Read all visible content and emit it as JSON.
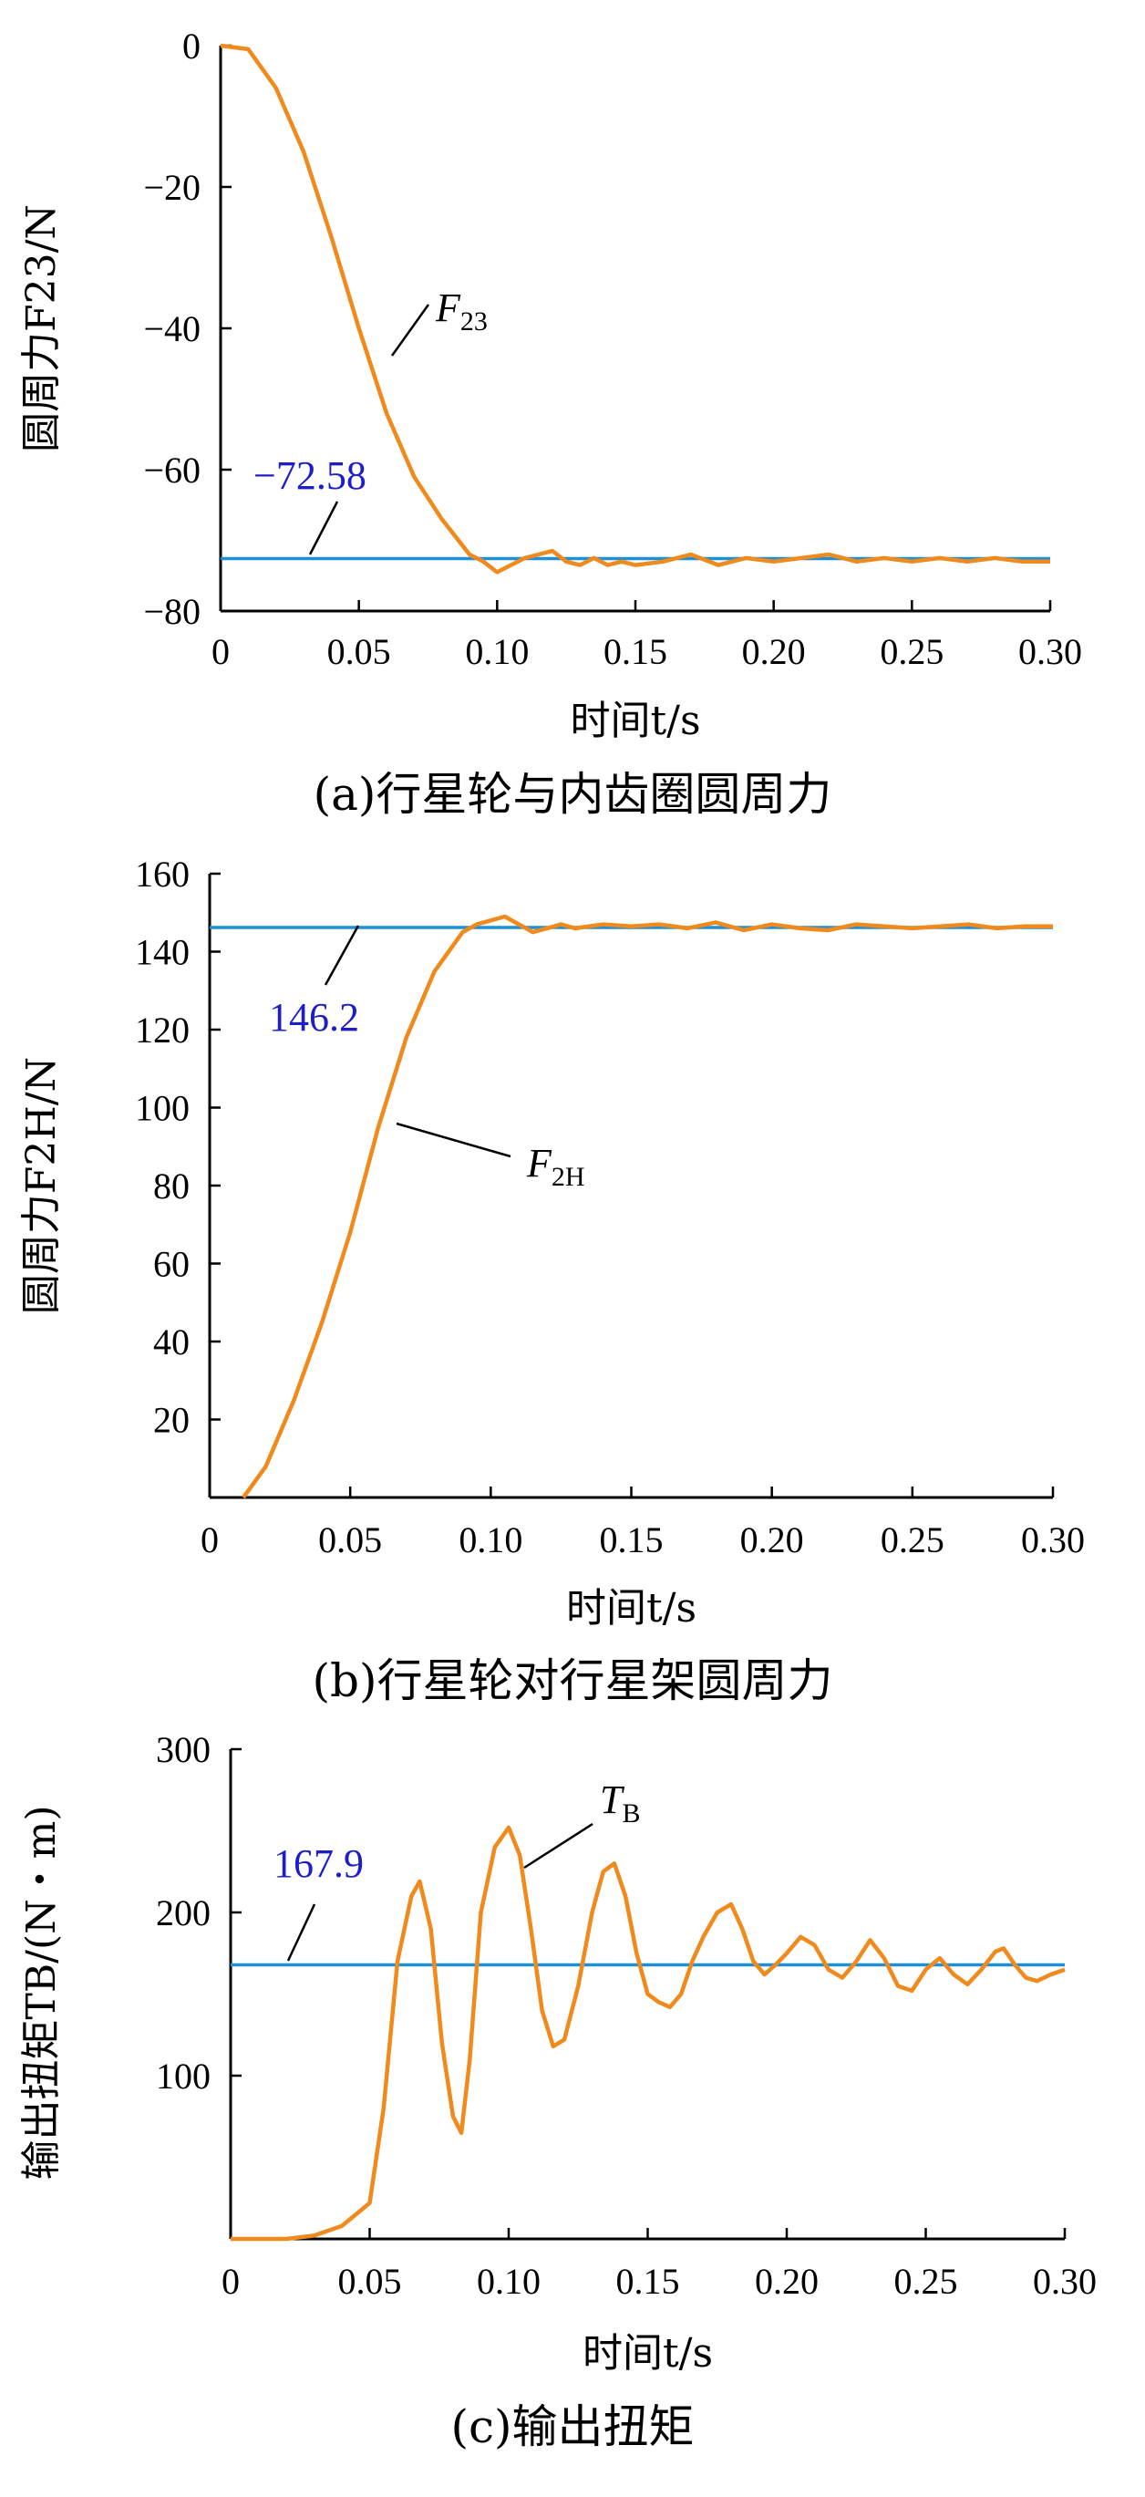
{
  "chart_data": [
    {
      "type": "line",
      "caption": "(a)行星轮与内齿圈圆周力",
      "xlabel": "时间t/s",
      "ylabel": "圆周力F23/N",
      "xlim": [
        0,
        0.3
      ],
      "ylim": [
        -80,
        0
      ],
      "x_ticks": [
        0,
        0.05,
        0.1,
        0.15,
        0.2,
        0.25,
        0.3
      ],
      "x_tick_labels": [
        "0",
        "0.05",
        "0.10",
        "0.15",
        "0.20",
        "0.25",
        "0.30"
      ],
      "y_ticks": [
        0,
        -20,
        -40,
        -60,
        -80
      ],
      "y_tick_labels": [
        "0",
        "−20",
        "−40",
        "−60",
        "−80"
      ],
      "reference": {
        "value": -72.58,
        "label": "−72.58",
        "color": "#1e90d8",
        "label_color": "#1e1ec8"
      },
      "series": [
        {
          "name": "F23",
          "name_main": "F",
          "name_sub": "23",
          "color": "#f08a1c",
          "x": [
            0,
            0.01,
            0.02,
            0.03,
            0.04,
            0.05,
            0.06,
            0.07,
            0.08,
            0.09,
            0.095,
            0.1,
            0.105,
            0.11,
            0.115,
            0.12,
            0.125,
            0.13,
            0.135,
            0.14,
            0.145,
            0.15,
            0.16,
            0.17,
            0.18,
            0.19,
            0.2,
            0.21,
            0.22,
            0.23,
            0.24,
            0.25,
            0.26,
            0.27,
            0.28,
            0.29,
            0.3
          ],
          "y": [
            0,
            -0.5,
            -6,
            -15,
            -27,
            -40,
            -52,
            -61,
            -67,
            -72,
            -73,
            -74.5,
            -73.5,
            -72.5,
            -72,
            -71.5,
            -73,
            -73.5,
            -72.5,
            -73.5,
            -73,
            -73.5,
            -73,
            -72,
            -73.5,
            -72.5,
            -73,
            -72.5,
            -72,
            -73,
            -72.5,
            -73,
            -72.5,
            -73,
            -72.5,
            -73,
            -73
          ]
        }
      ]
    },
    {
      "type": "line",
      "caption": "(b)行星轮对行星架圆周力",
      "xlabel": "时间t/s",
      "ylabel": "圆周力F2H/N",
      "xlim": [
        0,
        0.3
      ],
      "ylim": [
        0,
        160
      ],
      "x_ticks": [
        0,
        0.05,
        0.1,
        0.15,
        0.2,
        0.25,
        0.3
      ],
      "x_tick_labels": [
        "0",
        "0.05",
        "0.10",
        "0.15",
        "0.20",
        "0.25",
        "0.30"
      ],
      "y_ticks": [
        20,
        40,
        60,
        80,
        100,
        120,
        140,
        160
      ],
      "y_tick_labels": [
        "20",
        "40",
        "60",
        "80",
        "100",
        "120",
        "140",
        "160"
      ],
      "reference": {
        "value": 146.2,
        "label": "146.2",
        "color": "#1e90d8",
        "label_color": "#1e1ec8"
      },
      "series": [
        {
          "name": "F2H",
          "name_main": "F",
          "name_sub": "2H",
          "color": "#f08a1c",
          "x": [
            0.012,
            0.02,
            0.03,
            0.04,
            0.05,
            0.06,
            0.07,
            0.08,
            0.09,
            0.095,
            0.1,
            0.105,
            0.11,
            0.115,
            0.12,
            0.125,
            0.13,
            0.14,
            0.15,
            0.16,
            0.17,
            0.18,
            0.19,
            0.2,
            0.21,
            0.22,
            0.23,
            0.24,
            0.25,
            0.26,
            0.27,
            0.28,
            0.29,
            0.3
          ],
          "y": [
            0,
            8,
            25,
            45,
            68,
            95,
            118,
            135,
            145,
            147,
            148,
            149,
            147,
            145,
            146,
            147,
            146,
            147,
            146.5,
            147,
            146,
            147.5,
            145.5,
            147,
            146,
            145.5,
            147,
            146.5,
            146,
            146.5,
            147,
            146,
            146.5,
            146.5
          ]
        }
      ]
    },
    {
      "type": "line",
      "caption": "(c)输出扭矩",
      "xlabel": "时间t/s",
      "ylabel": "输出扭矩TB/(N・m)",
      "xlim": [
        0,
        0.3
      ],
      "ylim": [
        0,
        300
      ],
      "x_ticks": [
        0,
        0.05,
        0.1,
        0.15,
        0.2,
        0.25,
        0.3
      ],
      "x_tick_labels": [
        "0",
        "0.05",
        "0.10",
        "0.15",
        "0.20",
        "0.25",
        "0.30"
      ],
      "y_ticks": [
        100,
        200,
        300
      ],
      "y_tick_labels": [
        "100",
        "200",
        "300"
      ],
      "reference": {
        "value": 167.9,
        "label": "167.9",
        "color": "#1e90d8",
        "label_color": "#1e1ec8"
      },
      "series": [
        {
          "name": "TB",
          "name_main": "T",
          "name_sub": "B",
          "color": "#f08a1c",
          "x": [
            0,
            0.02,
            0.03,
            0.04,
            0.045,
            0.05,
            0.055,
            0.06,
            0.065,
            0.068,
            0.072,
            0.076,
            0.08,
            0.083,
            0.086,
            0.09,
            0.095,
            0.1,
            0.104,
            0.108,
            0.112,
            0.116,
            0.12,
            0.125,
            0.13,
            0.134,
            0.138,
            0.142,
            0.146,
            0.15,
            0.154,
            0.158,
            0.162,
            0.166,
            0.17,
            0.175,
            0.18,
            0.184,
            0.188,
            0.192,
            0.196,
            0.2,
            0.205,
            0.21,
            0.215,
            0.22,
            0.225,
            0.23,
            0.235,
            0.24,
            0.245,
            0.25,
            0.255,
            0.26,
            0.265,
            0.27,
            0.275,
            0.278,
            0.282,
            0.286,
            0.29,
            0.295,
            0.3
          ],
          "y": [
            0,
            0,
            2,
            8,
            15,
            22,
            80,
            170,
            210,
            219,
            190,
            120,
            75,
            65,
            110,
            200,
            240,
            252,
            235,
            190,
            140,
            118,
            122,
            155,
            200,
            225,
            230,
            210,
            175,
            150,
            145,
            142,
            150,
            170,
            185,
            200,
            205,
            190,
            170,
            162,
            168,
            175,
            185,
            180,
            165,
            160,
            170,
            183,
            172,
            155,
            152,
            165,
            172,
            162,
            156,
            165,
            176,
            178,
            168,
            160,
            158,
            162,
            165
          ]
        }
      ]
    }
  ]
}
